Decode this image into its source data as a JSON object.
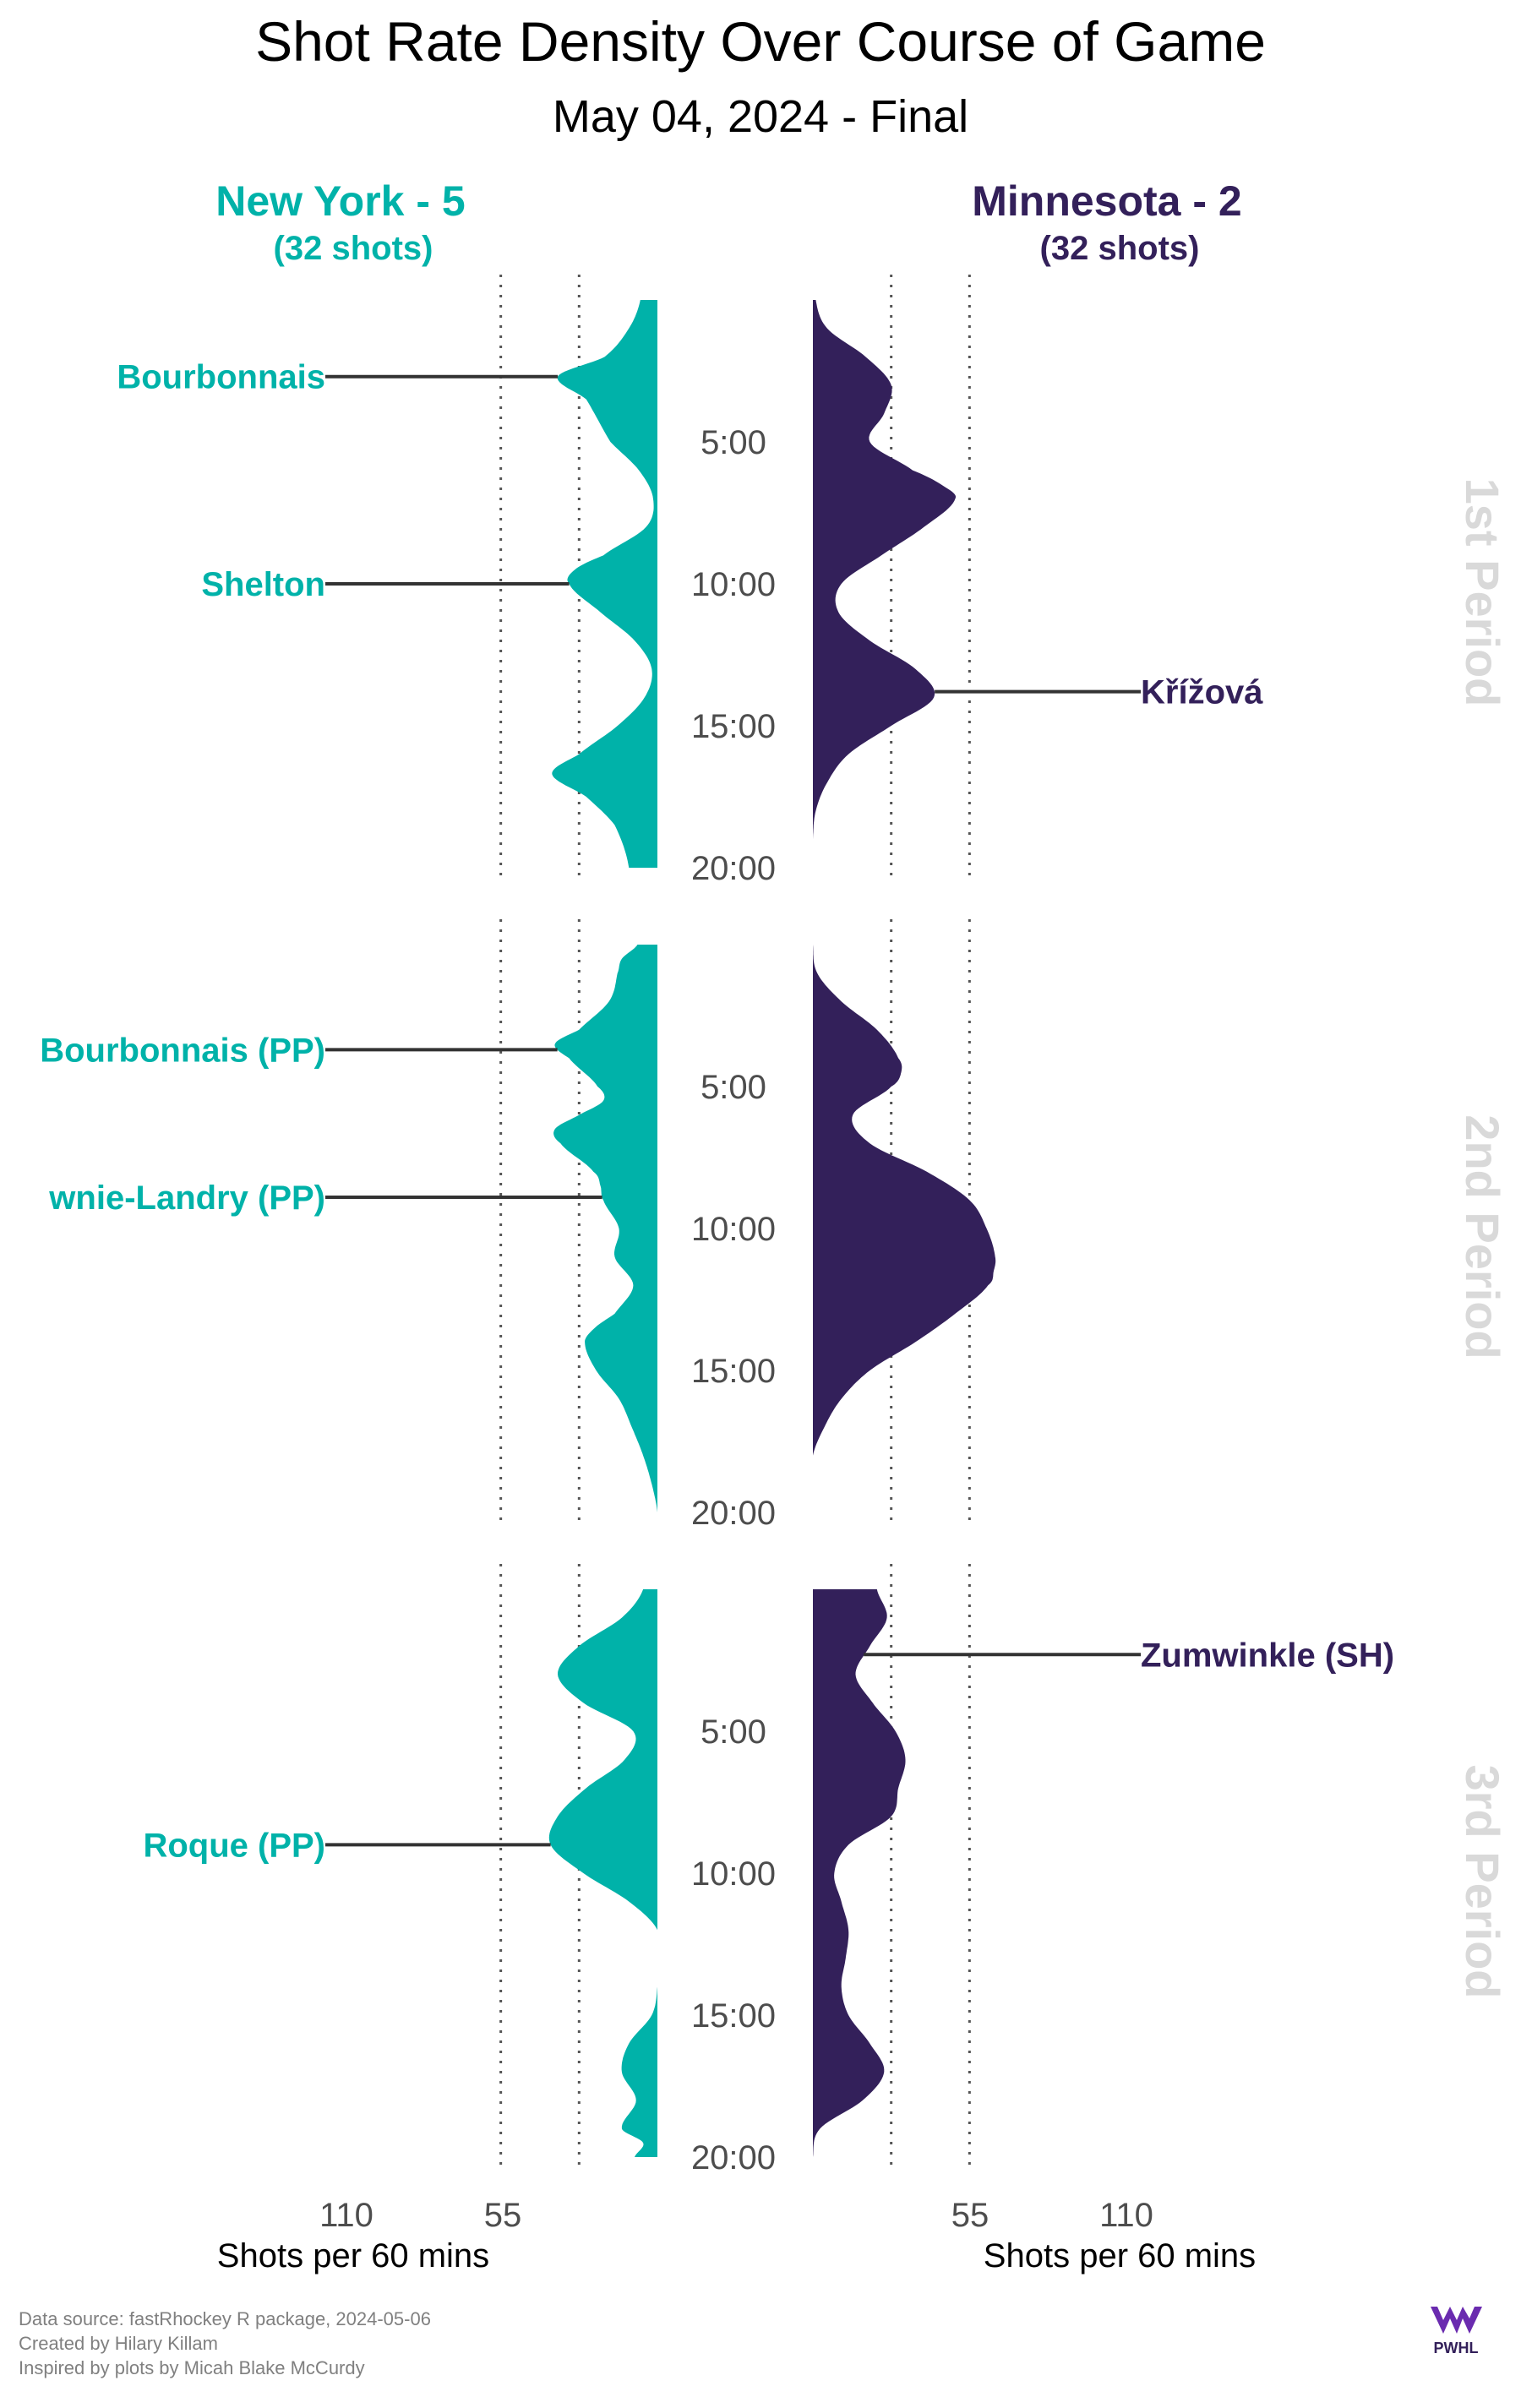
{
  "title": "Shot Rate Density Over Course of Game",
  "subtitle": "May 04, 2024 - Final",
  "colors": {
    "new_york": "#00B2A9",
    "minnesota": "#33205A",
    "period_label": "#D9D9D9",
    "axis_text": "#4D4D4D",
    "footer": "#808080"
  },
  "teams": {
    "left": {
      "name": "New York - 5",
      "shots": "(32 shots)"
    },
    "right": {
      "name": "Minnesota - 2",
      "shots": "(32 shots)"
    }
  },
  "time_labels": [
    "5:00",
    "10:00",
    "15:00",
    "20:00"
  ],
  "periods": [
    "1st Period",
    "2nd Period",
    "3rd Period"
  ],
  "x_axis": {
    "left_ticks": [
      "110",
      "55"
    ],
    "right_ticks": [
      "55",
      "110"
    ],
    "label": "Shots per 60 mins"
  },
  "footer": {
    "line1": "Data source: fastRhockey R package, 2024-05-06",
    "line2": "Created by Hilary Killam",
    "line3": "Inspired by plots by Micah Blake McCurdy"
  },
  "logo": {
    "text": "PWHL",
    "icon": "pwhl-logo"
  },
  "chart_data": {
    "type": "area",
    "title": "Shot Rate Density Over Course of Game",
    "subtitle": "May 04, 2024 - Final",
    "xlabel": "Shots per 60 mins",
    "ylabel": "",
    "xlim": [
      0,
      130
    ],
    "x_ticks": [
      55,
      110
    ],
    "ylim": [
      0,
      20
    ],
    "y_ticks": [
      "5:00",
      "10:00",
      "15:00",
      "20:00"
    ],
    "grid": "dotted vertical lines at 55 and 110",
    "facets": [
      "1st Period",
      "2nd Period",
      "3rd Period"
    ],
    "series": [
      {
        "name": "New York - 5",
        "color": "#00B2A9",
        "direction": "left",
        "periods": [
          {
            "period": "1st Period",
            "t": [
              0,
              1,
              2,
              2.7,
              3.5,
              5,
              6,
              7,
              8,
              9,
              9.5,
              10,
              11,
              12,
              13,
              14,
              15,
              16,
              16.7,
              17.5,
              18.5,
              20
            ],
            "rate": [
              12,
              20,
              37,
              70,
              50,
              33,
              13,
              3,
              8,
              38,
              58,
              62,
              40,
              16,
              4,
              9,
              28,
              55,
              74,
              50,
              30,
              20
            ]
          },
          {
            "period": "2nd Period",
            "t": [
              0,
              0.5,
              1,
              2,
              3,
              3.5,
              4,
              5,
              5.5,
              6,
              6.5,
              7,
              8,
              8.5,
              9,
              10,
              11,
              12,
              13,
              13.5,
              14,
              15,
              16,
              17,
              18,
              19,
              20
            ],
            "rate": [
              14,
              25,
              28,
              34,
              55,
              72,
              62,
              42,
              38,
              55,
              72,
              68,
              45,
              40,
              38,
              27,
              30,
              17,
              30,
              44,
              51,
              43,
              27,
              18,
              10,
              4,
              0
            ]
          },
          {
            "period": "3rd Period",
            "t": [
              0,
              1,
              2,
              3,
              4,
              5,
              6,
              7,
              8,
              9,
              10,
              11,
              12,
              13,
              14,
              15,
              16,
              17,
              18,
              19,
              19.5,
              20
            ],
            "rate": [
              10,
              25,
              55,
              70,
              52,
              17,
              23,
              50,
              70,
              75,
              52,
              20,
              0,
              0,
              0,
              4,
              20,
              25,
              15,
              25,
              10,
              16
            ]
          }
        ]
      },
      {
        "name": "Minnesota - 2",
        "color": "#33205A",
        "direction": "right",
        "periods": [
          {
            "period": "1st Period",
            "t": [
              0,
              1,
              2,
              3,
              4,
              5,
              6,
              6.5,
              7,
              8,
              9,
              10,
              11,
              12,
              13,
              14,
              15,
              16,
              17,
              18,
              19,
              20
            ],
            "rate": [
              2,
              10,
              37,
              55,
              50,
              40,
              70,
              90,
              100,
              78,
              48,
              20,
              18,
              40,
              72,
              85,
              55,
              25,
              10,
              2,
              0,
              0
            ]
          },
          {
            "period": "2nd Period",
            "t": [
              0,
              1,
              2,
              3,
              4,
              4.5,
              5,
              6,
              7,
              8,
              9,
              10,
              11,
              11.5,
              12,
              13,
              14,
              15,
              16,
              17,
              18,
              19,
              20
            ],
            "rate": [
              0,
              3,
              20,
              45,
              60,
              62,
              55,
              28,
              40,
              80,
              110,
              122,
              128,
              127,
              123,
              100,
              72,
              40,
              20,
              8,
              0,
              0,
              0
            ]
          },
          {
            "period": "3rd Period",
            "t": [
              0,
              1,
              2,
              3,
              4,
              5,
              6,
              7,
              8,
              9,
              10,
              11,
              12,
              13,
              14,
              15,
              16,
              17,
              18,
              19,
              20
            ],
            "rate": [
              45,
              52,
              40,
              30,
              42,
              58,
              65,
              60,
              55,
              25,
              15,
              20,
              25,
              23,
              20,
              25,
              40,
              50,
              35,
              5,
              0
            ]
          }
        ]
      }
    ],
    "annotations": [
      {
        "team": "New York - 5",
        "period": "1st Period",
        "time": 2.7,
        "label": "Bourbonnais"
      },
      {
        "team": "New York - 5",
        "period": "1st Period",
        "time": 10.0,
        "label": "Shelton"
      },
      {
        "team": "Minnesota - 2",
        "period": "1st Period",
        "time": 13.8,
        "label": "Křížová"
      },
      {
        "team": "New York - 5",
        "period": "2nd Period",
        "time": 3.7,
        "label": "Bourbonnais (PP)"
      },
      {
        "team": "New York - 5",
        "period": "2nd Period",
        "time": 8.9,
        "label": "wnie-Landry (PP)"
      },
      {
        "team": "Minnesota - 2",
        "period": "3rd Period",
        "time": 2.3,
        "label": "Zumwinkle (SH)"
      },
      {
        "team": "New York - 5",
        "period": "3rd Period",
        "time": 9.0,
        "label": "Roque (PP)"
      }
    ]
  }
}
